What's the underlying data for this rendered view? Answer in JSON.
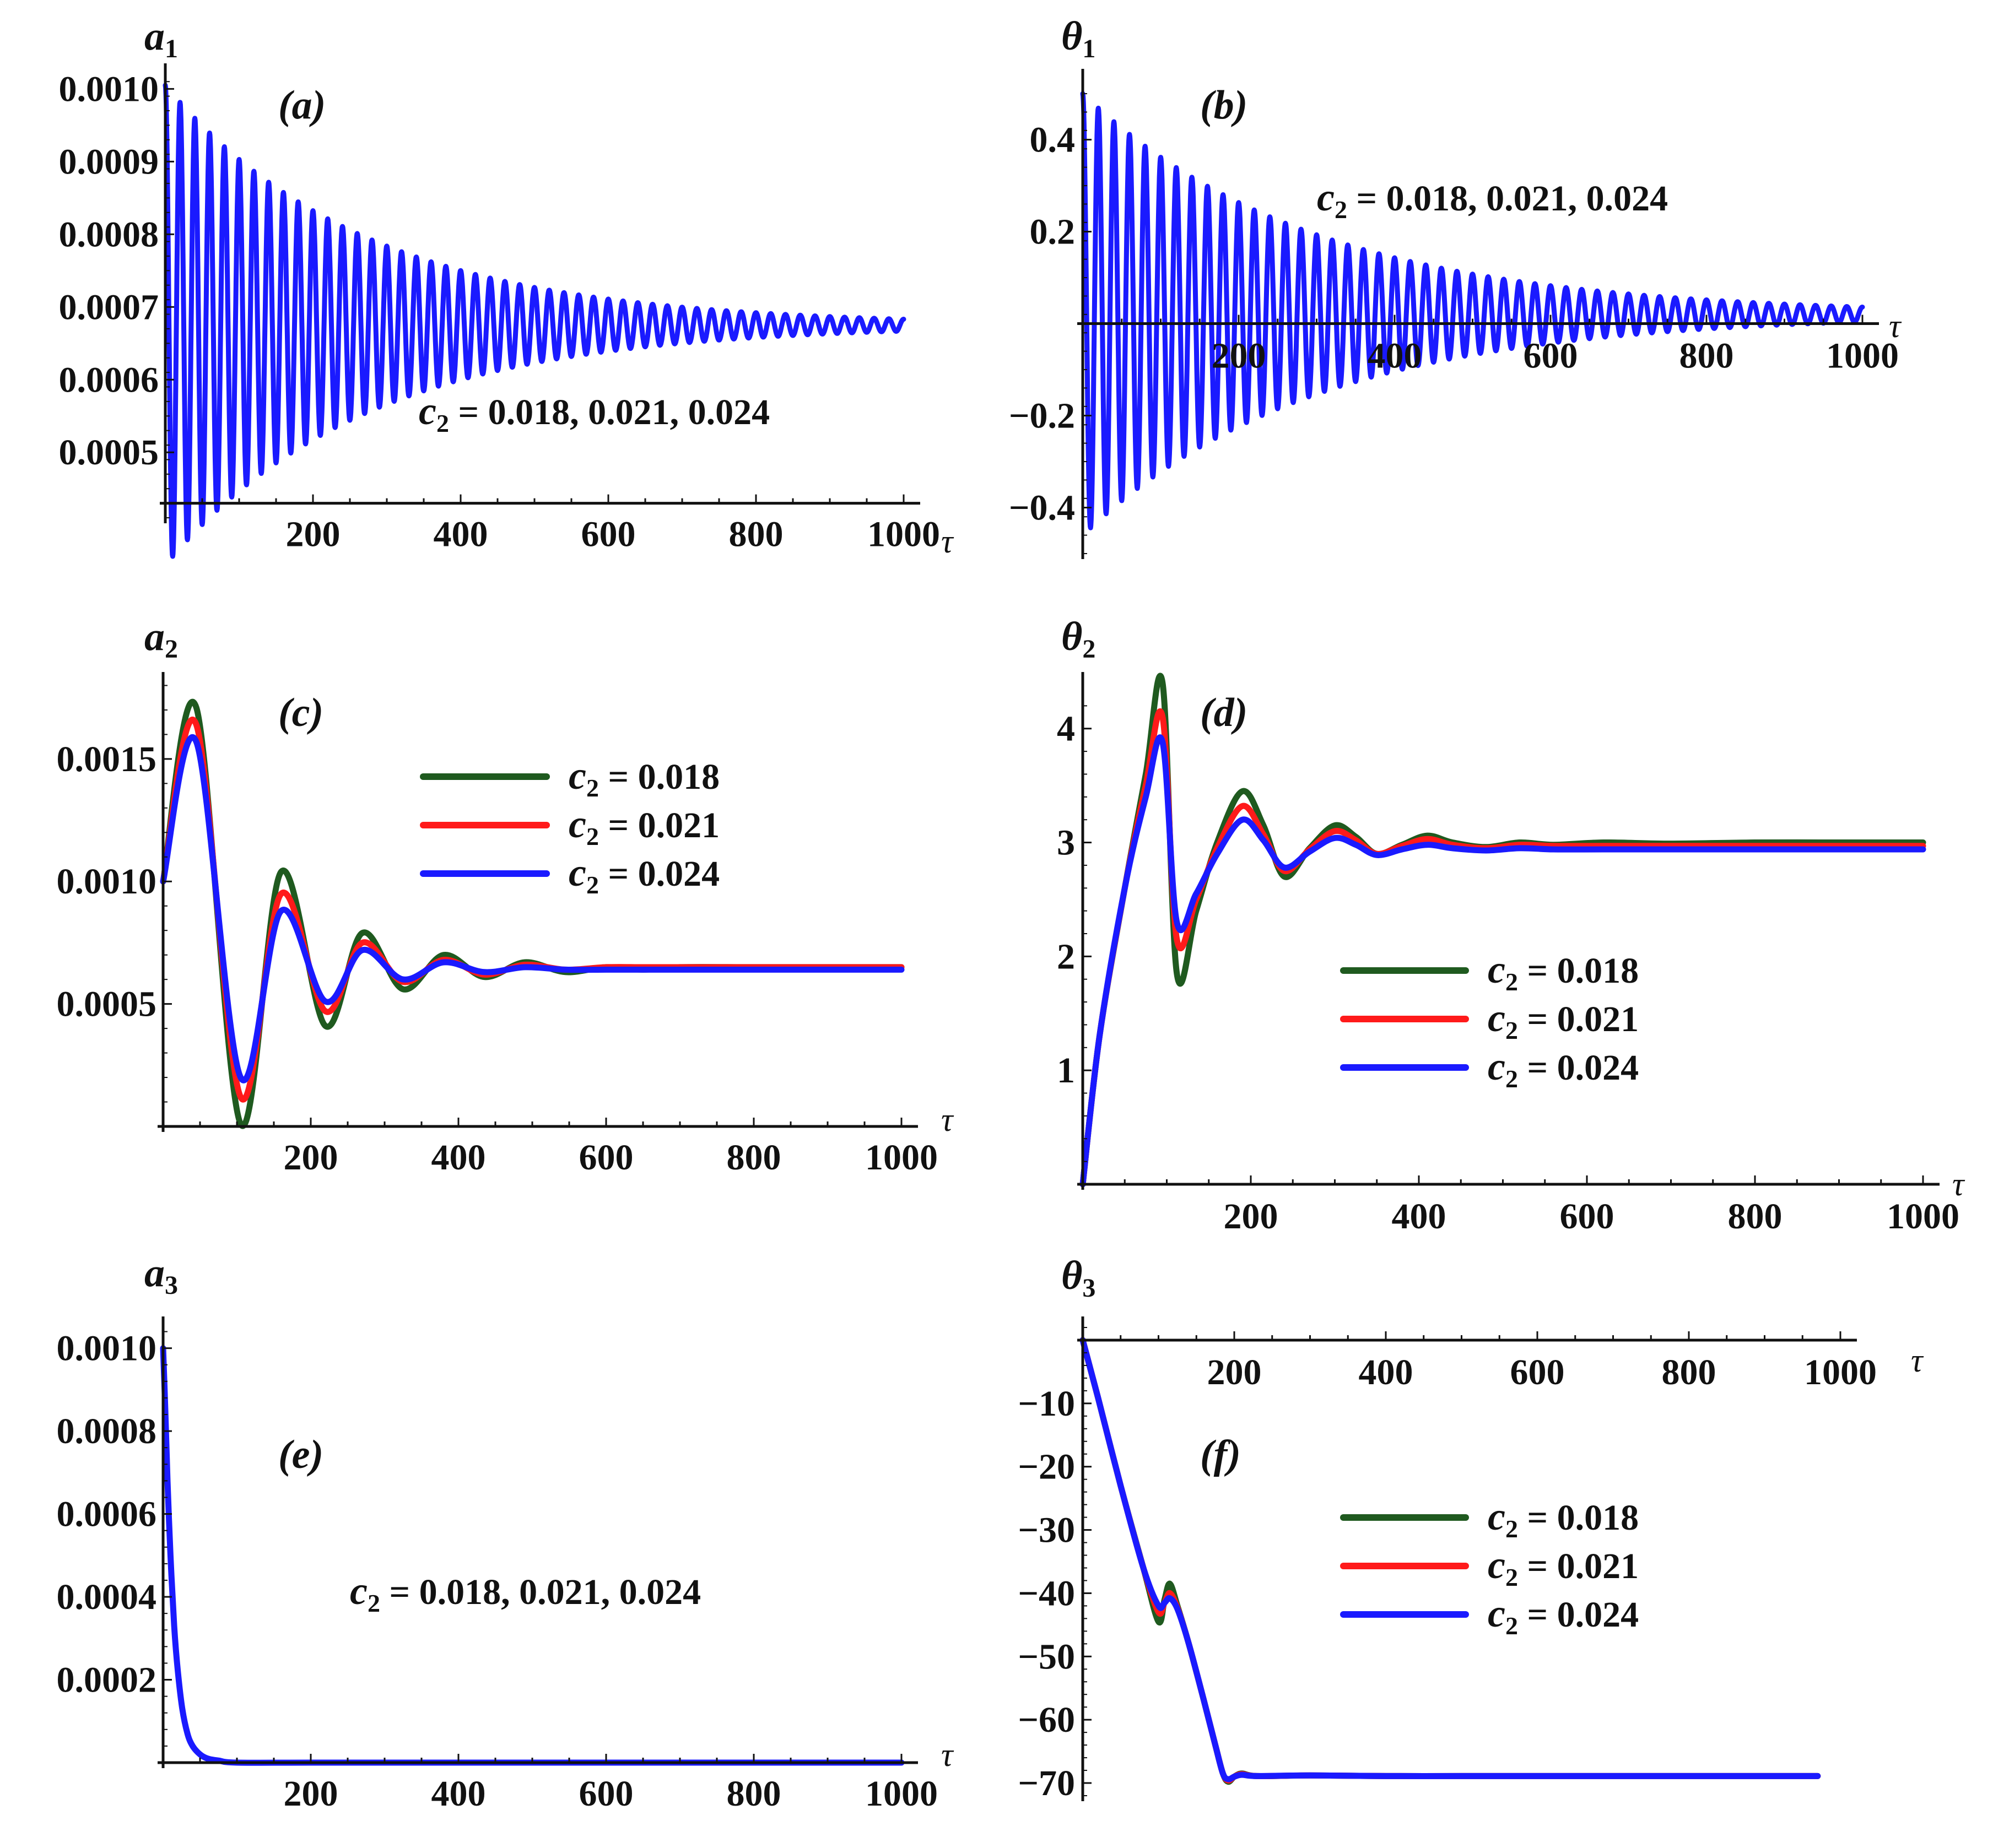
{
  "colors": {
    "c018": "#1f5a1f",
    "c021": "#ff1a1a",
    "c024": "#1a1aff",
    "axis": "#111111"
  },
  "legend_entries": [
    "c₂ = 0.018",
    "c₂ = 0.021",
    "c₂ = 0.024"
  ],
  "chart_data": [
    {
      "id": "a",
      "type": "line",
      "panel_label": "(a)",
      "ylabel": "a",
      "ylabel_sub": "1",
      "xlabel": "τ",
      "xlim": [
        0,
        1000
      ],
      "ylim": [
        0.00041,
        0.00102
      ],
      "x_axis_at": 0.00043,
      "xticks": [
        200,
        400,
        600,
        800,
        1000
      ],
      "xtick_labels": [
        "200",
        "400",
        "600",
        "800",
        "1000"
      ],
      "yticks": [
        0.0005,
        0.0006,
        0.0007,
        0.0008,
        0.0009,
        0.001
      ],
      "ytick_labels": [
        "0.0005",
        "0.0006",
        "0.0007",
        "0.0008",
        "0.0009",
        "0.0010"
      ],
      "annotation": {
        "var": "c",
        "sub": "2",
        "text": " = 0.018, 0.021, 0.024"
      },
      "series": [
        {
          "name": "c₂ = 0.018, 0.021, 0.024 (overlapping)",
          "color": "#1a1aff",
          "model": {
            "kind": "decaying-oscillation",
            "mean": 0.000675,
            "amp0": 0.00033,
            "decay": 0.0037,
            "period": 20,
            "phase": 1.5708,
            "samples": 2400
          }
        }
      ]
    },
    {
      "id": "b",
      "type": "line",
      "panel_label": "(b)",
      "ylabel": "θ",
      "ylabel_sub": "1",
      "xlabel": "τ",
      "xlim": [
        0,
        1000
      ],
      "ylim": [
        -0.5,
        0.53
      ],
      "x_axis_at": 0,
      "xticks": [
        200,
        400,
        600,
        800,
        1000
      ],
      "xtick_labels": [
        "200",
        "400",
        "600",
        "800",
        "1000"
      ],
      "yticks": [
        -0.4,
        -0.2,
        0.2,
        0.4
      ],
      "ytick_labels": [
        "−0.4",
        "−0.2",
        "0.2",
        "0.4"
      ],
      "annotation": {
        "var": "c",
        "sub": "2",
        "text": " = 0.018, 0.021, 0.024"
      },
      "series": [
        {
          "name": "c₂ = 0.018, 0.021, 0.024 (overlapping)",
          "color": "#1a1aff",
          "model": {
            "kind": "decaying-oscillation",
            "mean": 0.02,
            "amp0": 0.48,
            "decay": 0.0034,
            "period": 20,
            "phase": 1.5708,
            "samples": 2400
          }
        }
      ]
    },
    {
      "id": "c",
      "type": "line",
      "panel_label": "(c)",
      "ylabel": "a",
      "ylabel_sub": "2",
      "xlabel": "τ",
      "xlim": [
        0,
        1000
      ],
      "ylim": [
        0.0,
        0.00181
      ],
      "x_axis_at": 0.0,
      "xticks": [
        200,
        400,
        600,
        800,
        1000
      ],
      "xtick_labels": [
        "200",
        "400",
        "600",
        "800",
        "1000"
      ],
      "yticks": [
        0.0005,
        0.001,
        0.0015
      ],
      "ytick_labels": [
        "0.0005",
        "0.0010",
        "0.0015"
      ],
      "legend": true,
      "series": [
        {
          "name": "c₂ = 0.018",
          "color": "#1f5a1f",
          "x": [
            0,
            45,
            105,
            160,
            220,
            270,
            325,
            380,
            435,
            490,
            545,
            600,
            650,
            700,
            800,
            900,
            1000
          ],
          "y": [
            0.001,
            0.00171,
            1e-05,
            0.00104,
            0.00041,
            0.00079,
            0.00056,
            0.0007,
            0.00061,
            0.00067,
            0.00063,
            0.00065,
            0.00064,
            0.00065,
            0.00065,
            0.00065,
            0.00065
          ]
        },
        {
          "name": "c₂ = 0.021",
          "color": "#ff1a1a",
          "x": [
            0,
            45,
            105,
            160,
            220,
            270,
            325,
            380,
            435,
            490,
            545,
            600,
            650,
            700,
            800,
            900,
            1000
          ],
          "y": [
            0.001,
            0.00164,
            0.00012,
            0.00095,
            0.00047,
            0.00075,
            0.00059,
            0.00068,
            0.00062,
            0.00066,
            0.00064,
            0.00065,
            0.00065,
            0.00065,
            0.00065,
            0.00065,
            0.00065
          ]
        },
        {
          "name": "c₂ = 0.024",
          "color": "#1a1aff",
          "x": [
            0,
            45,
            105,
            160,
            220,
            270,
            325,
            380,
            435,
            490,
            545,
            600,
            650,
            700,
            800,
            900,
            1000
          ],
          "y": [
            0.001,
            0.00157,
            0.0002,
            0.00088,
            0.00051,
            0.00072,
            0.0006,
            0.00067,
            0.00063,
            0.00065,
            0.00064,
            0.00064,
            0.00064,
            0.00064,
            0.00064,
            0.00064,
            0.00064
          ]
        }
      ]
    },
    {
      "id": "d",
      "type": "line",
      "panel_label": "(d)",
      "ylabel": "θ",
      "ylabel_sub": "2",
      "xlabel": "τ",
      "xlim": [
        0,
        1000
      ],
      "ylim": [
        0,
        4.4
      ],
      "x_axis_at": 0,
      "xticks": [
        200,
        400,
        600,
        800,
        1000
      ],
      "xtick_labels": [
        "200",
        "400",
        "600",
        "800",
        "1000"
      ],
      "yticks": [
        1,
        2,
        3,
        4
      ],
      "ytick_labels": [
        "1",
        "2",
        "3",
        "4"
      ],
      "legend": true,
      "series": [
        {
          "name": "c₂ = 0.018",
          "color": "#1f5a1f",
          "x": [
            0,
            20,
            50,
            75,
            95,
            112,
            135,
            160,
            190,
            215,
            240,
            270,
            300,
            325,
            350,
            380,
            410,
            440,
            480,
            520,
            560,
            620,
            700,
            800,
            900,
            1000
          ],
          "y": [
            0.0,
            1.3,
            2.6,
            3.6,
            4.4,
            1.85,
            2.4,
            3.0,
            3.45,
            3.15,
            2.7,
            2.95,
            3.15,
            3.05,
            2.9,
            2.98,
            3.06,
            3.0,
            2.96,
            3.0,
            2.98,
            3.0,
            2.99,
            3.0,
            3.0,
            3.0
          ]
        },
        {
          "name": "c₂ = 0.021",
          "color": "#ff1a1a",
          "x": [
            0,
            20,
            50,
            75,
            95,
            112,
            135,
            160,
            190,
            215,
            240,
            270,
            300,
            325,
            350,
            380,
            410,
            440,
            480,
            520,
            560,
            620,
            700,
            800,
            900,
            1000
          ],
          "y": [
            0.0,
            1.3,
            2.6,
            3.5,
            4.1,
            2.15,
            2.5,
            2.95,
            3.32,
            3.07,
            2.75,
            2.94,
            3.1,
            3.02,
            2.9,
            2.97,
            3.03,
            2.98,
            2.95,
            2.98,
            2.97,
            2.97,
            2.97,
            2.97,
            2.97,
            2.97
          ]
        },
        {
          "name": "c₂ = 0.024",
          "color": "#1a1aff",
          "x": [
            0,
            20,
            50,
            75,
            95,
            112,
            135,
            160,
            190,
            215,
            240,
            270,
            300,
            325,
            350,
            380,
            410,
            440,
            480,
            520,
            560,
            620,
            700,
            800,
            900,
            1000
          ],
          "y": [
            0.0,
            1.3,
            2.6,
            3.4,
            3.88,
            2.3,
            2.55,
            2.9,
            3.2,
            3.02,
            2.78,
            2.92,
            3.04,
            2.98,
            2.89,
            2.94,
            2.98,
            2.95,
            2.93,
            2.95,
            2.94,
            2.94,
            2.94,
            2.94,
            2.94,
            2.94
          ]
        }
      ]
    },
    {
      "id": "e",
      "type": "line",
      "panel_label": "(e)",
      "ylabel": "a",
      "ylabel_sub": "3",
      "xlabel": "τ",
      "xlim": [
        0,
        1000
      ],
      "ylim": [
        0,
        0.00105
      ],
      "x_axis_at": 0,
      "xticks": [
        200,
        400,
        600,
        800,
        1000
      ],
      "xtick_labels": [
        "200",
        "400",
        "600",
        "800",
        "1000"
      ],
      "yticks": [
        0.0002,
        0.0004,
        0.0006,
        0.0008,
        0.001
      ],
      "ytick_labels": [
        "0.0002",
        "0.0004",
        "0.0006",
        "0.0008",
        "0.0010"
      ],
      "annotation": {
        "var": "c",
        "sub": "2",
        "text": " = 0.018, 0.021, 0.024"
      },
      "series": [
        {
          "name": "c₂ = 0.018, 0.021, 0.024 (overlapping)",
          "color": "#1a1aff",
          "x": [
            0,
            3,
            6,
            10,
            15,
            20,
            26,
            33,
            40,
            50,
            60,
            75,
            100,
            200,
            400,
            600,
            800,
            1000
          ],
          "y": [
            0.001,
            0.00085,
            0.00068,
            0.0005,
            0.00033,
            0.00022,
            0.00013,
            7e-05,
            4e-05,
            2e-05,
            1e-05,
            5e-06,
            0.0,
            0.0,
            0.0,
            0.0,
            0.0,
            0.0
          ]
        }
      ]
    },
    {
      "id": "f",
      "type": "line",
      "panel_label": "(f)",
      "ylabel": "θ",
      "ylabel_sub": "3",
      "xlabel": "τ",
      "xlim": [
        0,
        1000
      ],
      "ylim": [
        -72,
        2
      ],
      "x_axis_at": 0,
      "xticks": [
        200,
        400,
        600,
        800,
        1000
      ],
      "xtick_labels": [
        "200",
        "400",
        "600",
        "800",
        "1000"
      ],
      "yticks": [
        -70,
        -60,
        -50,
        -40,
        -30,
        -20,
        -10
      ],
      "ytick_labels": [
        "−70",
        "−60",
        "−50",
        "−40",
        "−30",
        "−20",
        "−10"
      ],
      "legend": true,
      "series": [
        {
          "name": "c₂ = 0.018",
          "color": "#1f5a1f",
          "x": [
            0,
            20,
            50,
            80,
            100,
            108,
            115,
            125,
            140,
            160,
            175,
            185,
            192,
            200,
            210,
            230,
            300,
            400,
            500,
            600,
            700,
            800,
            900,
            970
          ],
          "y": [
            0.0,
            -9.0,
            -23.0,
            -36.0,
            -44.5,
            -41.0,
            -38.5,
            -42.0,
            -48.0,
            -57.0,
            -64.0,
            -68.5,
            -69.8,
            -69.0,
            -68.5,
            -68.9,
            -68.8,
            -68.9,
            -68.9,
            -68.9,
            -68.9,
            -68.9,
            -68.9,
            -68.9
          ]
        },
        {
          "name": "c₂ = 0.021",
          "color": "#ff1a1a",
          "x": [
            0,
            20,
            50,
            80,
            100,
            108,
            115,
            125,
            140,
            160,
            175,
            185,
            192,
            200,
            210,
            230,
            300,
            400,
            500,
            600,
            700,
            800,
            900,
            970
          ],
          "y": [
            0.0,
            -9.0,
            -23.0,
            -36.0,
            -43.0,
            -41.5,
            -40.0,
            -42.3,
            -48.0,
            -57.0,
            -64.0,
            -68.5,
            -69.6,
            -69.0,
            -68.6,
            -68.9,
            -68.8,
            -68.9,
            -68.9,
            -68.9,
            -68.9,
            -68.9,
            -68.9,
            -68.9
          ]
        },
        {
          "name": "c₂ = 0.024",
          "color": "#1a1aff",
          "x": [
            0,
            20,
            50,
            80,
            100,
            108,
            115,
            125,
            140,
            160,
            175,
            185,
            192,
            200,
            210,
            230,
            300,
            400,
            500,
            600,
            700,
            800,
            900,
            970
          ],
          "y": [
            0.0,
            -9.0,
            -23.0,
            -36.0,
            -42.0,
            -41.5,
            -40.8,
            -42.5,
            -48.0,
            -57.0,
            -64.0,
            -68.5,
            -69.4,
            -69.0,
            -68.7,
            -68.9,
            -68.8,
            -68.9,
            -68.9,
            -68.9,
            -68.9,
            -68.9,
            -68.9,
            -68.9
          ]
        }
      ]
    }
  ]
}
